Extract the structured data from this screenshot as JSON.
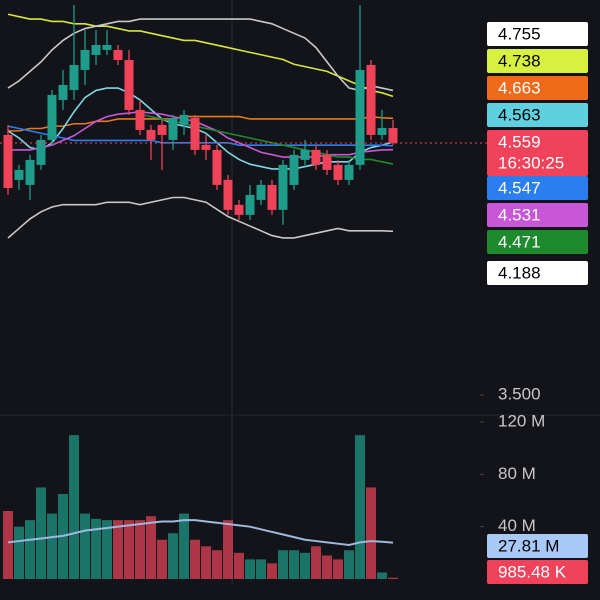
{
  "chart_data": {
    "type": "candlestick",
    "up_color": "#1f9c8a",
    "down_color": "#f0435a",
    "ylim": [
      3.416,
      5.16
    ],
    "yticks": [
      {
        "value": 3.5,
        "label": "3.500"
      }
    ],
    "open": [
      4.593,
      4.404,
      4.383,
      4.467,
      4.572,
      4.74,
      4.782,
      4.866,
      4.929,
      4.95,
      4.95,
      4.908,
      4.698,
      4.614,
      4.635,
      4.572,
      4.635,
      4.664,
      4.551,
      4.53,
      4.404,
      4.299,
      4.257,
      4.32,
      4.383,
      4.278,
      4.383,
      4.488,
      4.53,
      4.509,
      4.467,
      4.404,
      4.467,
      4.887,
      4.593,
      4.622
    ],
    "high": [
      4.635,
      4.467,
      4.509,
      4.593,
      4.782,
      4.866,
      5.139,
      5.034,
      5.034,
      5.034,
      4.971,
      4.95,
      4.74,
      4.635,
      4.656,
      4.677,
      4.698,
      4.677,
      4.593,
      4.551,
      4.425,
      4.32,
      4.383,
      4.404,
      4.404,
      4.488,
      4.53,
      4.572,
      4.551,
      4.53,
      4.488,
      4.488,
      5.139,
      4.908,
      4.698,
      4.656
    ],
    "low": [
      4.341,
      4.362,
      4.32,
      4.446,
      4.551,
      4.698,
      4.74,
      4.803,
      4.887,
      4.929,
      4.887,
      4.677,
      4.593,
      4.488,
      4.446,
      4.53,
      4.593,
      4.509,
      4.488,
      4.362,
      4.257,
      4.236,
      4.236,
      4.299,
      4.257,
      4.215,
      4.362,
      4.467,
      4.446,
      4.425,
      4.383,
      4.383,
      4.446,
      4.572,
      4.572,
      4.551
    ],
    "close": [
      4.37,
      4.446,
      4.488,
      4.572,
      4.761,
      4.803,
      4.887,
      4.95,
      4.971,
      4.971,
      4.908,
      4.698,
      4.614,
      4.572,
      4.593,
      4.664,
      4.677,
      4.53,
      4.53,
      4.383,
      4.278,
      4.257,
      4.341,
      4.383,
      4.278,
      4.467,
      4.509,
      4.53,
      4.467,
      4.446,
      4.404,
      4.467,
      4.866,
      4.593,
      4.622,
      4.559
    ],
    "lines": [
      {
        "color": "#d8e63c",
        "values": [
          5.1,
          5.09,
          5.08,
          5.08,
          5.07,
          5.07,
          5.06,
          5.06,
          5.05,
          5.05,
          5.04,
          5.03,
          5.03,
          5.02,
          5.01,
          5.0,
          4.99,
          4.99,
          4.98,
          4.97,
          4.96,
          4.95,
          4.94,
          4.93,
          4.92,
          4.91,
          4.89,
          4.88,
          4.87,
          4.86,
          4.84,
          4.82,
          4.8,
          4.78,
          4.77,
          4.755
        ]
      },
      {
        "color": "#e8781e",
        "values": [
          4.61,
          4.61,
          4.62,
          4.62,
          4.63,
          4.63,
          4.64,
          4.64,
          4.65,
          4.65,
          4.66,
          4.66,
          4.66,
          4.66,
          4.66,
          4.66,
          4.67,
          4.67,
          4.67,
          4.67,
          4.67,
          4.67,
          4.66,
          4.66,
          4.66,
          4.66,
          4.66,
          4.66,
          4.66,
          4.66,
          4.66,
          4.66,
          4.66,
          4.67,
          4.665,
          4.663
        ]
      },
      {
        "color": "#7fd6e8",
        "values": [
          4.61,
          4.58,
          4.54,
          4.53,
          4.56,
          4.62,
          4.69,
          4.75,
          4.78,
          4.79,
          4.79,
          4.77,
          4.74,
          4.7,
          4.66,
          4.64,
          4.63,
          4.62,
          4.6,
          4.56,
          4.52,
          4.49,
          4.47,
          4.46,
          4.45,
          4.45,
          4.45,
          4.46,
          4.47,
          4.48,
          4.48,
          4.48,
          4.52,
          4.54,
          4.55,
          4.563
        ]
      },
      {
        "color": "#2a7ef0",
        "values": [
          4.63,
          4.62,
          4.61,
          4.6,
          4.59,
          4.58,
          4.57,
          4.57,
          4.57,
          4.57,
          4.57,
          4.57,
          4.57,
          4.57,
          4.56,
          4.56,
          4.56,
          4.56,
          4.56,
          4.56,
          4.56,
          4.55,
          4.55,
          4.55,
          4.55,
          4.55,
          4.55,
          4.55,
          4.55,
          4.55,
          4.55,
          4.55,
          4.55,
          4.55,
          4.55,
          4.547
        ]
      },
      {
        "color": "#c857d8",
        "values": [
          4.53,
          4.53,
          4.53,
          4.54,
          4.55,
          4.57,
          4.59,
          4.62,
          4.65,
          4.67,
          4.68,
          4.685,
          4.69,
          4.685,
          4.68,
          4.67,
          4.66,
          4.65,
          4.63,
          4.61,
          4.58,
          4.56,
          4.54,
          4.52,
          4.51,
          4.5,
          4.5,
          4.5,
          4.5,
          4.51,
          4.51,
          4.51,
          4.52,
          4.525,
          4.53,
          4.531
        ]
      },
      {
        "color": "#1e8a2e",
        "values": [
          null,
          null,
          null,
          null,
          null,
          null,
          null,
          null,
          null,
          null,
          null,
          null,
          4.68,
          4.67,
          4.66,
          4.65,
          4.64,
          4.63,
          4.62,
          4.61,
          4.6,
          4.59,
          4.58,
          4.57,
          4.56,
          4.55,
          4.54,
          4.53,
          4.52,
          4.51,
          4.5,
          4.5,
          4.49,
          4.49,
          4.48,
          4.471
        ]
      },
      {
        "color": "#c8c8c8",
        "values": [
          4.79,
          4.82,
          4.86,
          4.9,
          4.95,
          4.99,
          5.02,
          5.04,
          5.05,
          5.06,
          5.07,
          5.07,
          5.08,
          5.08,
          5.08,
          5.08,
          5.08,
          5.08,
          5.08,
          5.08,
          5.08,
          5.08,
          5.08,
          5.07,
          5.06,
          5.04,
          5.02,
          5.0,
          4.96,
          4.9,
          4.84,
          4.79,
          4.78,
          4.8,
          4.79,
          4.78
        ]
      },
      {
        "color": "#c8c8c8",
        "values": [
          4.16,
          4.2,
          4.24,
          4.27,
          4.29,
          4.3,
          4.3,
          4.3,
          4.3,
          4.31,
          4.31,
          4.31,
          4.3,
          4.31,
          4.32,
          4.33,
          4.33,
          4.32,
          4.31,
          4.28,
          4.25,
          4.23,
          4.21,
          4.19,
          4.17,
          4.16,
          4.16,
          4.17,
          4.18,
          4.19,
          4.2,
          4.19,
          4.19,
          4.19,
          4.19,
          4.188
        ]
      }
    ],
    "price_tags": [
      {
        "value": 4.755,
        "color": "#ffffff",
        "text_color": "#000000"
      },
      {
        "value": 4.738,
        "color": "#d8f040",
        "text_color": "#000000"
      },
      {
        "value": 4.663,
        "color": "#f06a1a",
        "text_color": "#ffffff"
      },
      {
        "value": 4.563,
        "color": "#5fd0e0",
        "text_color": "#000000"
      },
      {
        "value": 4.547,
        "color": "#2a7ef0",
        "text_color": "#ffffff"
      },
      {
        "value": 4.531,
        "color": "#c857d8",
        "text_color": "#ffffff"
      },
      {
        "value": 4.471,
        "color": "#1e8a2e",
        "text_color": "#ffffff"
      },
      {
        "value": 4.188,
        "color": "#ffffff",
        "text_color": "#000000"
      }
    ],
    "last_price": 4.559,
    "last_time": "16:30:25",
    "last_color": "#f0425a",
    "volume": {
      "ylim": [
        0,
        125
      ],
      "yticks": [
        {
          "value": 40,
          "label": "40 M"
        },
        {
          "value": 80,
          "label": "80 M"
        },
        {
          "value": 120,
          "label": "120 M"
        }
      ],
      "values": [
        52,
        40,
        45,
        70,
        50,
        65,
        110,
        50,
        46,
        45,
        45,
        45,
        45,
        48,
        30,
        35,
        50,
        30,
        25,
        22,
        45,
        20,
        15,
        15,
        12,
        22,
        22,
        20,
        25,
        18,
        15,
        22,
        110,
        70,
        5,
        0.98548
      ],
      "ma": {
        "color": "#9fb8e0",
        "values": [
          28,
          29,
          30,
          31,
          32,
          33,
          35,
          37,
          38,
          39,
          40,
          41,
          42,
          43,
          44,
          44,
          45,
          45,
          44,
          43,
          42,
          41,
          40,
          38,
          36,
          34,
          32,
          30,
          29,
          28,
          27,
          26,
          28,
          29,
          28.5,
          27.81
        ]
      },
      "tags": [
        {
          "value": 27.81,
          "label": "27.81 M",
          "color": "#a8c8f8",
          "text_color": "#000000"
        },
        {
          "value": 0.98548,
          "label": "985.48 K",
          "color": "#f0425a",
          "text_color": "#ffffff"
        }
      ]
    }
  }
}
